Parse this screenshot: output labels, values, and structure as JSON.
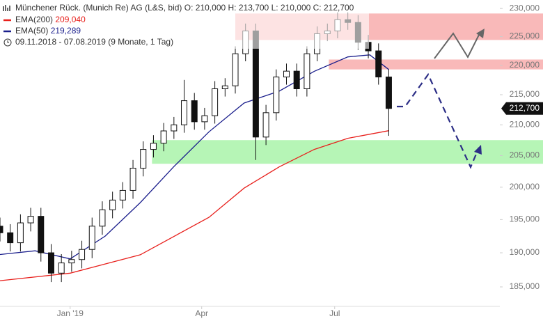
{
  "header": {
    "title": "Münchener Rück. (Munich Re) AG (L&S, bid)",
    "open": "O: 210,000",
    "high": "H: 213,700",
    "low": "L: 210,000",
    "close": "C: 212,700",
    "period": "09.11.2018 - 07.08.2019",
    "span": "(9 Monate, 1 Tag)"
  },
  "chart_data": {
    "type": "candlestick",
    "log_scale": true,
    "x": [
      5,
      12,
      19,
      26,
      33,
      40,
      47,
      54,
      61,
      68,
      75,
      82,
      89,
      96,
      103,
      110,
      117,
      124,
      131,
      138,
      145,
      152,
      159,
      166,
      173,
      180,
      187,
      194,
      201,
      208,
      215,
      222,
      229,
      236,
      243,
      250,
      257,
      264,
      271
    ],
    "open": [
      194000,
      193000,
      191500,
      194500,
      195500,
      190000,
      187000,
      188500,
      189000,
      190500,
      194000,
      196500,
      198000,
      199500,
      203000,
      206000,
      207000,
      209000,
      210000,
      214000,
      210500,
      211500,
      216000,
      216500,
      222000,
      226000,
      208000,
      212000,
      218000,
      219000,
      216000,
      222000,
      225500,
      226000,
      228000,
      227500,
      224000,
      222500,
      218000
    ],
    "high": [
      195300,
      194300,
      195800,
      196800,
      196800,
      191300,
      189800,
      190300,
      191800,
      195300,
      197800,
      199300,
      200800,
      204300,
      207300,
      208300,
      210300,
      211300,
      217500,
      215300,
      212800,
      217300,
      217800,
      223300,
      227300,
      227300,
      213300,
      219300,
      220300,
      220300,
      223300,
      226800,
      227300,
      229300,
      229300,
      228800,
      225300,
      223800,
      219300
    ],
    "low": [
      191700,
      190200,
      190200,
      193200,
      188700,
      185700,
      185700,
      187200,
      187700,
      189200,
      192700,
      195200,
      196700,
      198200,
      201700,
      204700,
      205700,
      207700,
      208700,
      209200,
      209200,
      210200,
      214700,
      215200,
      220700,
      204300,
      206700,
      210700,
      216700,
      214700,
      214700,
      220700,
      224200,
      224700,
      226200,
      222700,
      221200,
      216700,
      208200
    ],
    "close": [
      193000,
      191500,
      194500,
      195500,
      190000,
      187000,
      188500,
      189000,
      190500,
      194000,
      196500,
      198000,
      199500,
      203000,
      206000,
      207000,
      209000,
      210000,
      214000,
      210500,
      211500,
      216000,
      216500,
      222000,
      226000,
      208000,
      212000,
      218000,
      219000,
      216000,
      222000,
      225500,
      226000,
      228000,
      227500,
      224000,
      222500,
      218000,
      212700
    ],
    "last_price": {
      "value": 212700,
      "label": "212,700"
    },
    "series": [
      {
        "name": "EMA(200)",
        "last_label": "209,040",
        "color": "#e8201c",
        "x": [
          5,
          53,
          101,
          148,
          172,
          196,
          220,
          243,
          271
        ],
        "values": [
          185900,
          187000,
          189700,
          195350,
          199850,
          203200,
          206000,
          207800,
          209040
        ]
      },
      {
        "name": "EMA(50)",
        "last_label": "219,289",
        "color": "#1a1e8c",
        "x": [
          5,
          29,
          53,
          77,
          101,
          124,
          148,
          172,
          196,
          220,
          243,
          258,
          271
        ],
        "values": [
          189750,
          190300,
          189100,
          192500,
          197600,
          203250,
          208850,
          213600,
          215600,
          218975,
          221450,
          221800,
          219289
        ]
      }
    ],
    "zones": [
      {
        "from": 166,
        "y": [
          224400,
          229100
        ],
        "color": "#f9b9b9"
      },
      {
        "from": 230,
        "y": [
          219300,
          221000
        ],
        "color": "#f9b9b9"
      },
      {
        "from": 109,
        "y": [
          203700,
          207500
        ],
        "color": "#b6f5b6"
      }
    ],
    "xlim": [
      5,
      347
    ],
    "ylim": [
      182700,
      230900
    ],
    "xticks": [
      {
        "value": 53,
        "label": "Jan '19"
      },
      {
        "value": 143,
        "label": "Apr"
      },
      {
        "value": 234,
        "label": "Jul"
      }
    ],
    "yticks": [
      {
        "value": 185000,
        "label": "185,000"
      },
      {
        "value": 190000,
        "label": "190,000"
      },
      {
        "value": 195000,
        "label": "195,000"
      },
      {
        "value": 200000,
        "label": "200,000"
      },
      {
        "value": 205000,
        "label": "205,000"
      },
      {
        "value": 210000,
        "label": "210,000"
      },
      {
        "value": 215000,
        "label": "215,000"
      },
      {
        "value": 220000,
        "label": "220,000"
      },
      {
        "value": 225000,
        "label": "225,000"
      },
      {
        "value": 230000,
        "label": "230,000"
      }
    ]
  }
}
